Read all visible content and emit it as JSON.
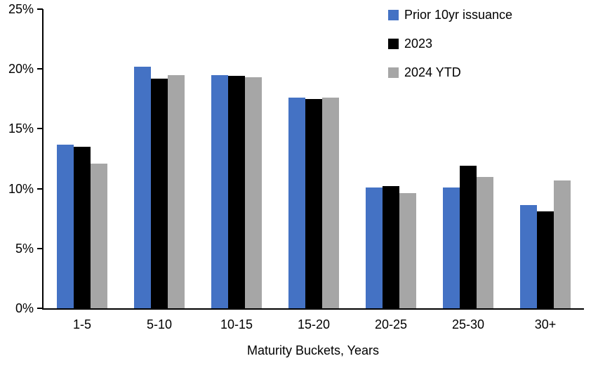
{
  "chart_data": {
    "type": "bar",
    "title": "",
    "xlabel": "Maturity Buckets, Years",
    "ylabel": "",
    "ylim": [
      0,
      25
    ],
    "ytick_step": 5,
    "ytick_labels": [
      "0%",
      "5%",
      "10%",
      "15%",
      "20%",
      "25%"
    ],
    "grid": false,
    "legend_position": "top-right",
    "categories": [
      "1-5",
      "5-10",
      "10-15",
      "15-20",
      "20-25",
      "25-30",
      "30+"
    ],
    "series": [
      {
        "name": "Prior 10yr issuance",
        "color": "#4472C4",
        "values": [
          13.7,
          20.2,
          19.5,
          17.6,
          10.1,
          10.1,
          8.6
        ]
      },
      {
        "name": "2023",
        "color": "#000000",
        "values": [
          13.5,
          19.2,
          19.4,
          17.5,
          10.2,
          11.9,
          8.1
        ]
      },
      {
        "name": "2024 YTD",
        "color": "#A6A6A6",
        "values": [
          12.1,
          19.5,
          19.3,
          17.6,
          9.6,
          11.0,
          10.7
        ]
      }
    ],
    "axis_color": "#000000"
  }
}
